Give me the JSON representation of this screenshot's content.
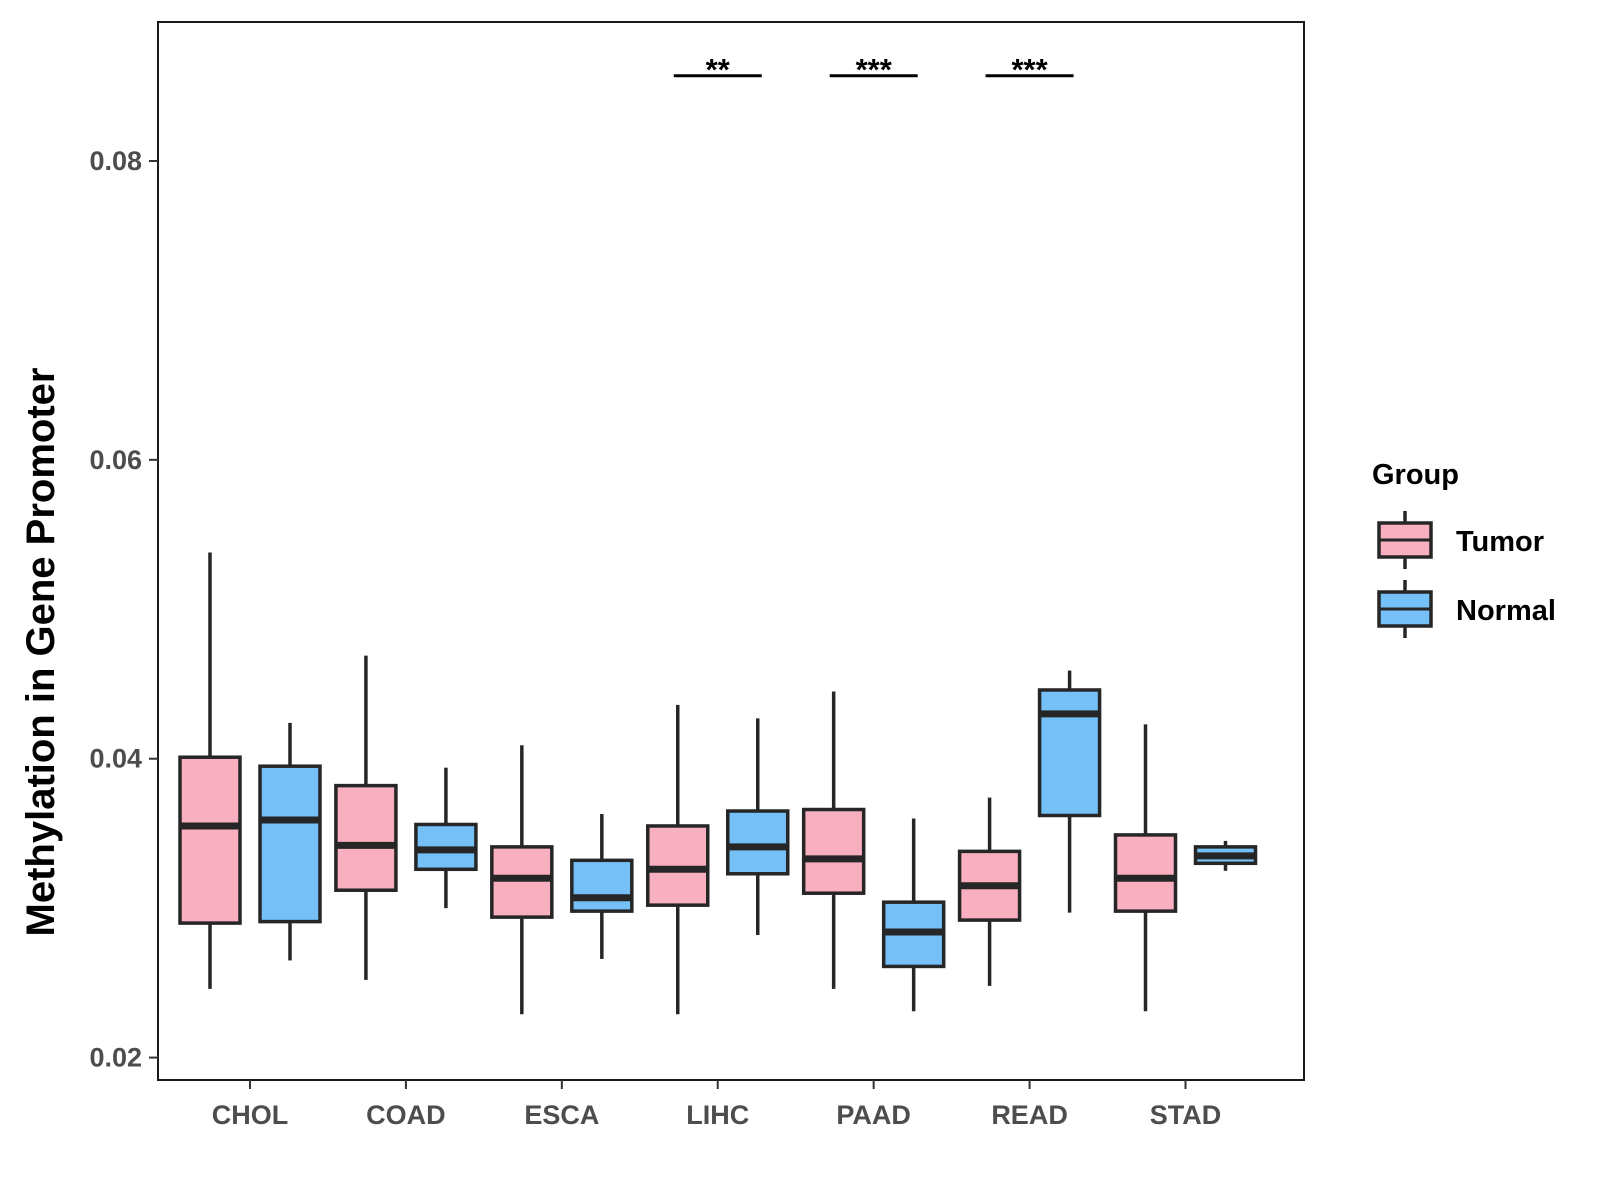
{
  "chart_data": {
    "type": "boxplot",
    "title": "",
    "xlabel": "",
    "ylabel": "Methylation in Gene Promoter",
    "ylim": [
      0.0185,
      0.0893
    ],
    "yticks": [
      0.02,
      0.04,
      0.06,
      0.08
    ],
    "ytick_labels": [
      "0.02",
      "0.04",
      "0.06",
      "0.08"
    ],
    "categories": [
      "CHOL",
      "COAD",
      "ESCA",
      "LIHC",
      "PAAD",
      "READ",
      "STAD"
    ],
    "legend": {
      "title": "Group",
      "position": "right",
      "entries": [
        {
          "name": "Tumor",
          "color": "#F8AFBF"
        },
        {
          "name": "Normal",
          "color": "#74C0F7"
        }
      ]
    },
    "series": [
      {
        "name": "Tumor",
        "color": "#F8AFBF",
        "boxes": [
          {
            "category": "CHOL",
            "whisker_low": 0.0246,
            "q1": 0.029,
            "median": 0.0355,
            "q3": 0.0401,
            "whisker_high": 0.0538
          },
          {
            "category": "COAD",
            "whisker_low": 0.0252,
            "q1": 0.0312,
            "median": 0.0342,
            "q3": 0.0382,
            "whisker_high": 0.0469
          },
          {
            "category": "ESCA",
            "whisker_low": 0.0229,
            "q1": 0.0294,
            "median": 0.032,
            "q3": 0.0341,
            "whisker_high": 0.0409
          },
          {
            "category": "LIHC",
            "whisker_low": 0.0229,
            "q1": 0.0302,
            "median": 0.0326,
            "q3": 0.0355,
            "whisker_high": 0.0436
          },
          {
            "category": "PAAD",
            "whisker_low": 0.0246,
            "q1": 0.031,
            "median": 0.0333,
            "q3": 0.0366,
            "whisker_high": 0.0445
          },
          {
            "category": "READ",
            "whisker_low": 0.0248,
            "q1": 0.0292,
            "median": 0.0315,
            "q3": 0.0338,
            "whisker_high": 0.0374
          },
          {
            "category": "STAD",
            "whisker_low": 0.0231,
            "q1": 0.0298,
            "median": 0.032,
            "q3": 0.0349,
            "whisker_high": 0.0423
          }
        ]
      },
      {
        "name": "Normal",
        "color": "#74C0F7",
        "boxes": [
          {
            "category": "CHOL",
            "whisker_low": 0.0265,
            "q1": 0.0291,
            "median": 0.0359,
            "q3": 0.0395,
            "whisker_high": 0.0424
          },
          {
            "category": "COAD",
            "whisker_low": 0.03,
            "q1": 0.0326,
            "median": 0.0339,
            "q3": 0.0356,
            "whisker_high": 0.0394
          },
          {
            "category": "ESCA",
            "whisker_low": 0.0266,
            "q1": 0.0298,
            "median": 0.0307,
            "q3": 0.0332,
            "whisker_high": 0.0363
          },
          {
            "category": "LIHC",
            "whisker_low": 0.0282,
            "q1": 0.0323,
            "median": 0.0341,
            "q3": 0.0365,
            "whisker_high": 0.0427
          },
          {
            "category": "PAAD",
            "whisker_low": 0.0231,
            "q1": 0.0261,
            "median": 0.0284,
            "q3": 0.0304,
            "whisker_high": 0.036
          },
          {
            "category": "READ",
            "whisker_low": 0.0297,
            "q1": 0.0362,
            "median": 0.043,
            "q3": 0.0446,
            "whisker_high": 0.0459
          },
          {
            "category": "STAD",
            "whisker_low": 0.0325,
            "q1": 0.033,
            "median": 0.0335,
            "q3": 0.0341,
            "whisker_high": 0.0345
          }
        ]
      }
    ],
    "annotations": [
      {
        "category": "LIHC",
        "label": "**",
        "y": 0.0857
      },
      {
        "category": "PAAD",
        "label": "***",
        "y": 0.0857
      },
      {
        "category": "READ",
        "label": "***",
        "y": 0.0857
      }
    ]
  }
}
